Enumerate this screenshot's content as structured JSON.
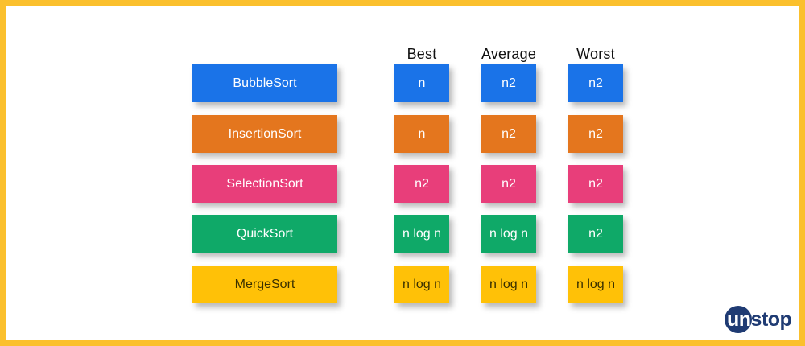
{
  "headers": [
    "Best",
    "Average",
    "Worst"
  ],
  "rows": [
    {
      "name": "BubbleSort",
      "best": "n",
      "average": "n2",
      "worst": "n2",
      "color": "#1A73E8",
      "text_color": "#ffffff"
    },
    {
      "name": "InsertionSort",
      "best": "n",
      "average": "n2",
      "worst": "n2",
      "color": "#E4761E",
      "text_color": "#ffffff"
    },
    {
      "name": "SelectionSort",
      "best": "n2",
      "average": "n2",
      "worst": "n2",
      "color": "#E83E7A",
      "text_color": "#ffffff"
    },
    {
      "name": "QuickSort",
      "best": "n log n",
      "average": "n log n",
      "worst": "n2",
      "color": "#0FA968",
      "text_color": "#ffffff"
    },
    {
      "name": "MergeSort",
      "best": "n log n",
      "average": "n log n",
      "worst": "n log n",
      "color": "#FFC107",
      "text_color": "#3a3000"
    }
  ],
  "logo": {
    "first": "un",
    "rest": "stop"
  },
  "colors": {
    "frame": "#FBC02D",
    "logo": "#1f3b73"
  }
}
